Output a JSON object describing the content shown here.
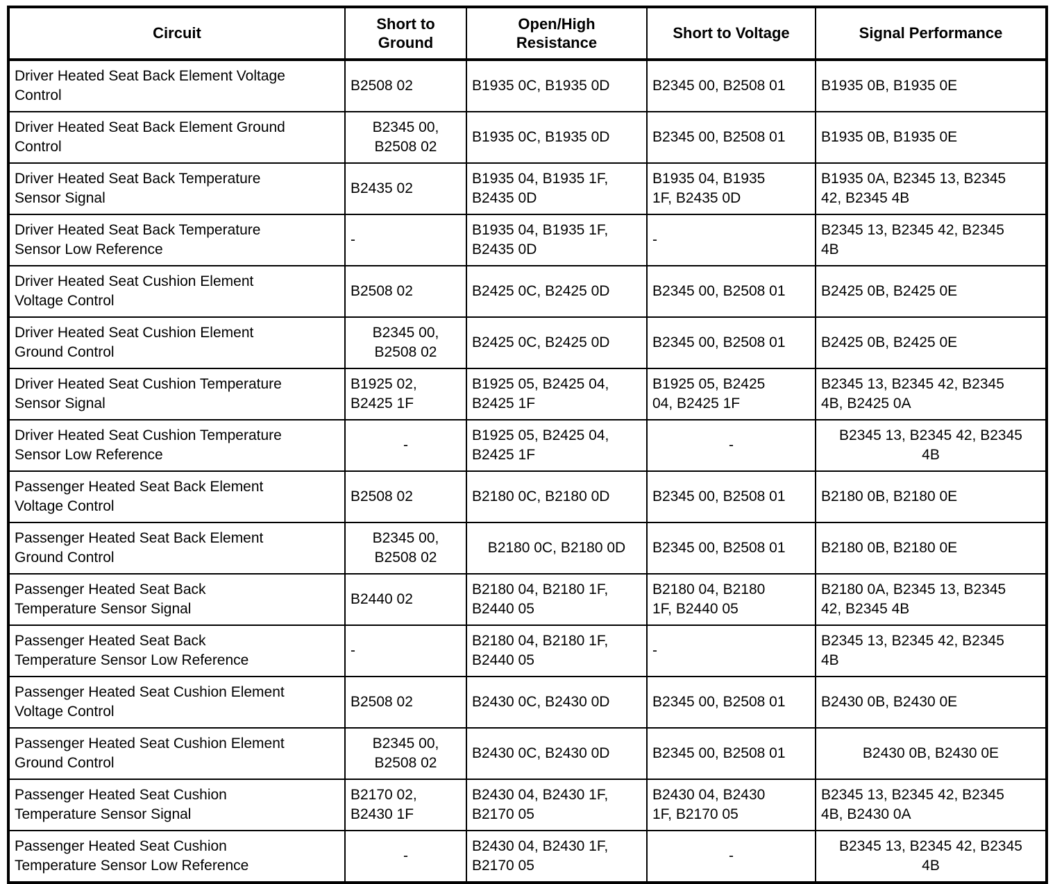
{
  "table": {
    "columns": [
      {
        "key": "circuit",
        "label": "Circuit"
      },
      {
        "key": "short-to-ground",
        "label": "Short to\nGround"
      },
      {
        "key": "open-high-resistance",
        "label": "Open/High\nResistance"
      },
      {
        "key": "short-to-voltage",
        "label": "Short to Voltage"
      },
      {
        "key": "signal-performance",
        "label": "Signal Performance"
      }
    ],
    "rows": [
      {
        "cells": [
          {
            "text": "Driver Heated Seat Back Element Voltage\nControl",
            "align": "left"
          },
          {
            "text": "B2508 02",
            "align": "left"
          },
          {
            "text": "B1935 0C, B1935 0D",
            "align": "left"
          },
          {
            "text": "B2345 00, B2508 01",
            "align": "left"
          },
          {
            "text": "B1935 0B, B1935 0E",
            "align": "left"
          }
        ]
      },
      {
        "cells": [
          {
            "text": "Driver Heated Seat Back Element Ground\nControl",
            "align": "left"
          },
          {
            "text": "B2345 00,\nB2508 02",
            "align": "center"
          },
          {
            "text": "B1935 0C, B1935 0D",
            "align": "left"
          },
          {
            "text": "B2345 00, B2508 01",
            "align": "left"
          },
          {
            "text": "B1935 0B, B1935 0E",
            "align": "left"
          }
        ]
      },
      {
        "cells": [
          {
            "text": "Driver Heated Seat Back Temperature\nSensor Signal",
            "align": "left"
          },
          {
            "text": "B2435 02",
            "align": "left"
          },
          {
            "text": "B1935 04, B1935 1F,\nB2435 0D",
            "align": "left"
          },
          {
            "text": "B1935 04, B1935\n1F, B2435 0D",
            "align": "left"
          },
          {
            "text": "B1935 0A, B2345 13, B2345\n42, B2345 4B",
            "align": "left"
          }
        ]
      },
      {
        "cells": [
          {
            "text": "Driver Heated Seat Back Temperature\nSensor Low Reference",
            "align": "left"
          },
          {
            "text": "-",
            "align": "left"
          },
          {
            "text": "B1935 04, B1935 1F,\nB2435 0D",
            "align": "left"
          },
          {
            "text": "-",
            "align": "left"
          },
          {
            "text": "B2345 13, B2345 42, B2345\n4B",
            "align": "left"
          }
        ]
      },
      {
        "cells": [
          {
            "text": "Driver Heated Seat Cushion Element\nVoltage Control",
            "align": "left"
          },
          {
            "text": "B2508 02",
            "align": "left"
          },
          {
            "text": "B2425 0C, B2425 0D",
            "align": "left"
          },
          {
            "text": "B2345 00, B2508 01",
            "align": "left"
          },
          {
            "text": "B2425 0B, B2425 0E",
            "align": "left"
          }
        ]
      },
      {
        "cells": [
          {
            "text": "Driver Heated Seat Cushion Element\nGround Control",
            "align": "left"
          },
          {
            "text": "B2345 00,\nB2508 02",
            "align": "center"
          },
          {
            "text": "B2425 0C, B2425 0D",
            "align": "left"
          },
          {
            "text": "B2345 00, B2508 01",
            "align": "left"
          },
          {
            "text": "B2425 0B, B2425 0E",
            "align": "left"
          }
        ]
      },
      {
        "cells": [
          {
            "text": "Driver Heated Seat Cushion Temperature\nSensor Signal",
            "align": "left"
          },
          {
            "text": "B1925 02,\nB2425 1F",
            "align": "left"
          },
          {
            "text": "B1925 05, B2425 04,\nB2425 1F",
            "align": "left"
          },
          {
            "text": "B1925 05, B2425\n04, B2425 1F",
            "align": "left"
          },
          {
            "text": "B2345 13, B2345 42, B2345\n4B, B2425 0A",
            "align": "left"
          }
        ]
      },
      {
        "cells": [
          {
            "text": "Driver Heated Seat Cushion Temperature\nSensor Low Reference",
            "align": "left"
          },
          {
            "text": "-",
            "align": "center"
          },
          {
            "text": "B1925 05, B2425 04,\nB2425 1F",
            "align": "left"
          },
          {
            "text": "-",
            "align": "center"
          },
          {
            "text": "B2345 13, B2345 42, B2345\n4B",
            "align": "center"
          }
        ]
      },
      {
        "cells": [
          {
            "text": "Passenger Heated Seat Back Element\nVoltage Control",
            "align": "left"
          },
          {
            "text": "B2508 02",
            "align": "left"
          },
          {
            "text": "B2180 0C, B2180 0D",
            "align": "left"
          },
          {
            "text": "B2345 00, B2508 01",
            "align": "left"
          },
          {
            "text": "B2180 0B, B2180 0E",
            "align": "left"
          }
        ]
      },
      {
        "cells": [
          {
            "text": "Passenger Heated Seat Back Element\nGround Control",
            "align": "left"
          },
          {
            "text": "B2345 00,\nB2508 02",
            "align": "center"
          },
          {
            "text": "B2180 0C, B2180 0D",
            "align": "center"
          },
          {
            "text": "B2345 00, B2508 01",
            "align": "left"
          },
          {
            "text": "B2180 0B, B2180 0E",
            "align": "left"
          }
        ]
      },
      {
        "cells": [
          {
            "text": "Passenger Heated Seat Back\nTemperature Sensor Signal",
            "align": "left"
          },
          {
            "text": "B2440 02",
            "align": "left"
          },
          {
            "text": "B2180 04, B2180 1F,\nB2440 05",
            "align": "left"
          },
          {
            "text": "B2180 04, B2180\n1F, B2440 05",
            "align": "left"
          },
          {
            "text": "B2180 0A, B2345 13, B2345\n42, B2345 4B",
            "align": "left"
          }
        ]
      },
      {
        "cells": [
          {
            "text": "Passenger Heated Seat Back\nTemperature Sensor Low Reference",
            "align": "left"
          },
          {
            "text": "-",
            "align": "left"
          },
          {
            "text": "B2180 04, B2180 1F,\nB2440 05",
            "align": "left"
          },
          {
            "text": "-",
            "align": "left"
          },
          {
            "text": "B2345 13, B2345 42, B2345\n4B",
            "align": "left"
          }
        ]
      },
      {
        "cells": [
          {
            "text": "Passenger Heated Seat Cushion Element\nVoltage Control",
            "align": "left"
          },
          {
            "text": "B2508 02",
            "align": "left"
          },
          {
            "text": "B2430 0C, B2430 0D",
            "align": "left"
          },
          {
            "text": "B2345 00, B2508 01",
            "align": "left"
          },
          {
            "text": "B2430 0B, B2430 0E",
            "align": "left"
          }
        ]
      },
      {
        "cells": [
          {
            "text": "Passenger Heated Seat Cushion Element\nGround Control",
            "align": "left"
          },
          {
            "text": "B2345 00,\nB2508 02",
            "align": "center"
          },
          {
            "text": "B2430 0C, B2430 0D",
            "align": "left"
          },
          {
            "text": "B2345 00, B2508 01",
            "align": "left"
          },
          {
            "text": "B2430 0B, B2430 0E",
            "align": "center"
          }
        ]
      },
      {
        "cells": [
          {
            "text": "Passenger Heated Seat Cushion\nTemperature Sensor Signal",
            "align": "left"
          },
          {
            "text": "B2170 02,\nB2430 1F",
            "align": "left"
          },
          {
            "text": "B2430 04, B2430 1F,\nB2170 05",
            "align": "left"
          },
          {
            "text": "B2430 04, B2430\n1F, B2170 05",
            "align": "left"
          },
          {
            "text": "B2345 13, B2345 42, B2345\n4B, B2430 0A",
            "align": "left"
          }
        ]
      },
      {
        "cells": [
          {
            "text": "Passenger Heated Seat Cushion\nTemperature Sensor Low Reference",
            "align": "left"
          },
          {
            "text": "-",
            "align": "center"
          },
          {
            "text": "B2430 04, B2430 1F,\nB2170 05",
            "align": "left"
          },
          {
            "text": "-",
            "align": "center"
          },
          {
            "text": "B2345 13, B2345 42, B2345\n4B",
            "align": "center"
          }
        ]
      }
    ]
  }
}
